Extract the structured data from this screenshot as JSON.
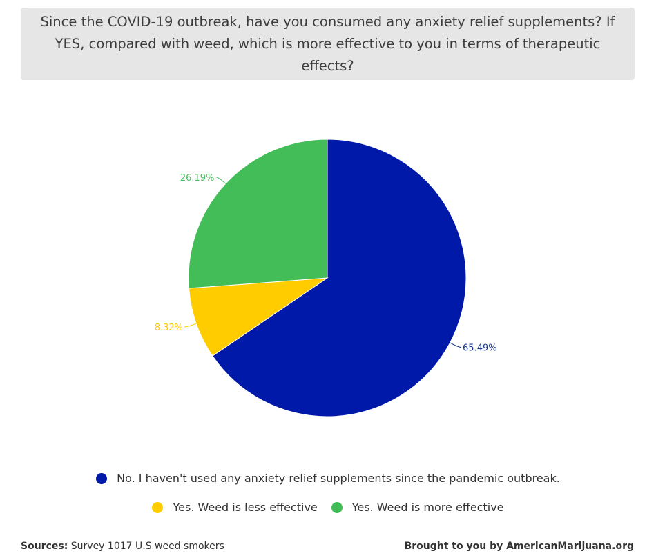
{
  "chart_data": {
    "type": "pie",
    "title": "Since the COVID-19 outbreak, have you consumed any anxiety relief supplements? If YES, compared with weed, which is more effective to you in terms of therapeutic effects?",
    "slices": [
      {
        "label": "No. I haven't used any anxiety relief supplements since the pandemic outbreak.",
        "value": 65.49,
        "display": "65.49%",
        "color": "#0019a8"
      },
      {
        "label": "Yes. Weed is less effective",
        "value": 8.32,
        "display": "8.32%",
        "color": "#ffcc00"
      },
      {
        "label": "Yes. Weed is more effective",
        "value": 26.19,
        "display": "26.19%",
        "color": "#42bd58"
      }
    ],
    "legend_placement": "bottom"
  },
  "footer": {
    "sources_label": "Sources:",
    "sources_text": " Survey 1017 U.S weed smokers",
    "credit": "Brought to you by AmericanMarijuana.org"
  }
}
